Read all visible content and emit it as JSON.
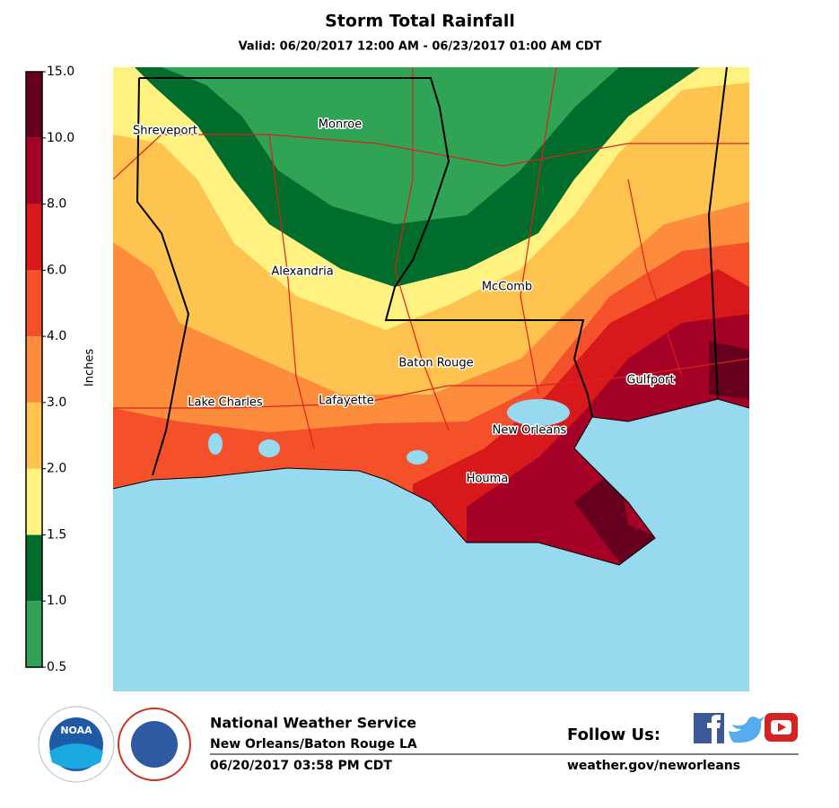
{
  "header": {
    "title": "Storm Total Rainfall",
    "subtitle": "Valid: 06/20/2017 12:00 AM - 06/23/2017 01:00 AM CDT"
  },
  "legend": {
    "label": "Inches",
    "ticks": [
      0.5,
      {
        "value": 1,
        "label": "1.0"
      },
      1.5,
      {
        "value": 2,
        "label": "2.0"
      },
      {
        "value": 3,
        "label": "3.0"
      },
      {
        "value": 4,
        "label": "4.0"
      },
      {
        "value": 6,
        "label": "6.0"
      },
      {
        "value": 8,
        "label": "8.0"
      },
      {
        "value": 10,
        "label": "10.0"
      },
      {
        "value": 15,
        "label": "15.0"
      }
    ],
    "colors": [
      "#31a354",
      "#006d2c",
      "#fff280",
      "#fec44f",
      "#fd8d3c",
      "#f4512a",
      "#d7191c",
      "#a50026",
      "#67001f"
    ]
  },
  "cities": [
    "Shreveport",
    "Monroe",
    "Alexandria",
    "McComb",
    "Baton Rouge",
    "Gulfport",
    "Lake Charles",
    "Lafayette",
    "New Orleans",
    "Houma"
  ],
  "footer": {
    "org": "National Weather Service",
    "office": "New Orleans/Baton Rouge LA",
    "issued": "06/20/2017 03:58 PM CDT",
    "follow": "Follow Us:",
    "url": "weather.gov/neworleans",
    "noaa": "NOAA"
  }
}
